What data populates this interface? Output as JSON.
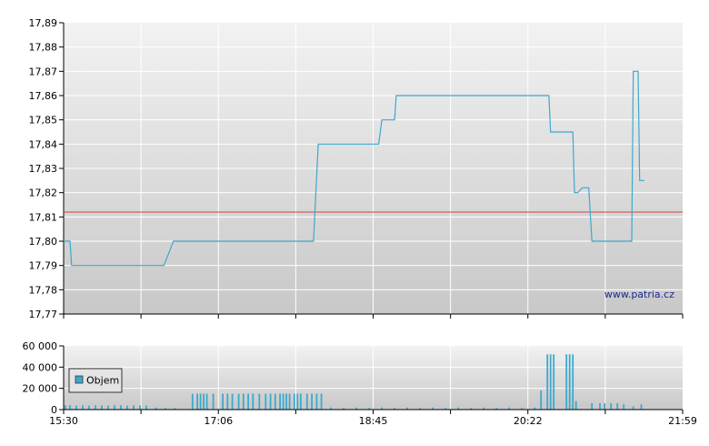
{
  "watermark": "www.patria.cz",
  "colors": {
    "price_line": "#3ea8cc",
    "reference_line": "#d04040",
    "volume_bar": "#3ea8cc",
    "grid": "#ffffff",
    "plot_bg_top": "#f2f2f2",
    "plot_bg_bottom": "#c8c8c8"
  },
  "chart_data": [
    {
      "type": "line",
      "title": "",
      "xlabel": "",
      "ylabel": "",
      "x_format": "time HH:MM",
      "xlim": [
        "15:30",
        "21:59"
      ],
      "ylim": [
        17.77,
        17.89
      ],
      "y_ticks": [
        "17,77",
        "17,78",
        "17,79",
        "17,80",
        "17,81",
        "17,82",
        "17,83",
        "17,84",
        "17,85",
        "17,86",
        "17,87",
        "17,88",
        "17,89"
      ],
      "y_tick_values": [
        17.77,
        17.78,
        17.79,
        17.8,
        17.81,
        17.82,
        17.83,
        17.84,
        17.85,
        17.86,
        17.87,
        17.88,
        17.89
      ],
      "grid": true,
      "reference_line": 17.812,
      "series": [
        {
          "step": true,
          "points": [
            [
              "15:30",
              17.8
            ],
            [
              "15:34",
              17.8
            ],
            [
              "15:35",
              17.79
            ],
            [
              "16:33",
              17.79
            ],
            [
              "16:39",
              17.8
            ],
            [
              "18:07",
              17.8
            ],
            [
              "18:10",
              17.84
            ],
            [
              "18:48",
              17.84
            ],
            [
              "18:50",
              17.85
            ],
            [
              "18:58",
              17.85
            ],
            [
              "18:59",
              17.86
            ],
            [
              "20:35",
              17.86
            ],
            [
              "20:36",
              17.845
            ],
            [
              "20:50",
              17.845
            ],
            [
              "20:51",
              17.82
            ],
            [
              "20:53",
              17.82
            ],
            [
              "20:56",
              17.822
            ],
            [
              "21:00",
              17.822
            ],
            [
              "21:02",
              17.8
            ],
            [
              "21:27",
              17.8
            ],
            [
              "21:28",
              17.87
            ],
            [
              "21:31",
              17.87
            ],
            [
              "21:32",
              17.825
            ],
            [
              "21:35",
              17.825
            ]
          ]
        }
      ]
    },
    {
      "type": "bar",
      "title": "",
      "xlabel": "",
      "ylabel": "",
      "ylim": [
        0,
        60000
      ],
      "y_ticks": [
        "0",
        "20 000",
        "40 000",
        "60 000"
      ],
      "y_tick_values": [
        0,
        20000,
        40000,
        60000
      ],
      "x_ticks": [
        "15:30",
        "17:06",
        "18:45",
        "20:22",
        "21:59"
      ],
      "grid": true,
      "legend": {
        "position": "left",
        "entries": [
          "Objem"
        ]
      },
      "series": [
        {
          "name": "Objem",
          "bars": [
            [
              "15:31",
              4000
            ],
            [
              "15:34",
              4000
            ],
            [
              "15:38",
              3800
            ],
            [
              "15:42",
              4000
            ],
            [
              "15:46",
              3800
            ],
            [
              "15:50",
              4000
            ],
            [
              "15:54",
              4000
            ],
            [
              "15:58",
              3800
            ],
            [
              "16:02",
              4000
            ],
            [
              "16:06",
              4000
            ],
            [
              "16:10",
              3800
            ],
            [
              "16:14",
              4000
            ],
            [
              "16:18",
              4000
            ],
            [
              "16:22",
              3800
            ],
            [
              "16:28",
              2000
            ],
            [
              "16:34",
              1500
            ],
            [
              "16:40",
              1500
            ],
            [
              "16:51",
              15000
            ],
            [
              "16:54",
              15000
            ],
            [
              "16:56",
              15000
            ],
            [
              "16:58",
              15000
            ],
            [
              "17:00",
              15000
            ],
            [
              "17:04",
              15000
            ],
            [
              "17:10",
              15000
            ],
            [
              "17:13",
              15000
            ],
            [
              "17:16",
              15000
            ],
            [
              "17:20",
              15000
            ],
            [
              "17:23",
              15000
            ],
            [
              "17:26",
              15000
            ],
            [
              "17:29",
              15000
            ],
            [
              "17:33",
              15000
            ],
            [
              "17:37",
              15000
            ],
            [
              "17:40",
              15000
            ],
            [
              "17:43",
              15000
            ],
            [
              "17:46",
              15000
            ],
            [
              "17:48",
              15000
            ],
            [
              "17:50",
              15000
            ],
            [
              "17:52",
              15000
            ],
            [
              "17:55",
              15000
            ],
            [
              "17:57",
              15000
            ],
            [
              "17:59",
              15000
            ],
            [
              "18:03",
              15000
            ],
            [
              "18:06",
              15000
            ],
            [
              "18:09",
              15000
            ],
            [
              "18:12",
              15000
            ],
            [
              "18:18",
              2000
            ],
            [
              "18:26",
              1500
            ],
            [
              "18:34",
              2000
            ],
            [
              "18:42",
              1500
            ],
            [
              "18:50",
              2000
            ],
            [
              "18:58",
              1500
            ],
            [
              "19:06",
              2000
            ],
            [
              "19:14",
              1500
            ],
            [
              "19:22",
              2000
            ],
            [
              "19:30",
              1500
            ],
            [
              "19:38",
              2000
            ],
            [
              "19:46",
              1500
            ],
            [
              "19:54",
              2000
            ],
            [
              "20:02",
              1500
            ],
            [
              "20:10",
              2000
            ],
            [
              "20:18",
              1500
            ],
            [
              "20:26",
              2000
            ],
            [
              "20:30",
              18000
            ],
            [
              "20:34",
              52000
            ],
            [
              "20:36",
              52000
            ],
            [
              "20:38",
              52000
            ],
            [
              "20:46",
              52000
            ],
            [
              "20:48",
              52000
            ],
            [
              "20:50",
              52000
            ],
            [
              "20:52",
              8000
            ],
            [
              "21:02",
              6000
            ],
            [
              "21:07",
              6000
            ],
            [
              "21:10",
              6000
            ],
            [
              "21:14",
              6000
            ],
            [
              "21:18",
              6000
            ],
            [
              "21:22",
              5000
            ],
            [
              "21:28",
              3000
            ],
            [
              "21:33",
              5000
            ]
          ]
        }
      ]
    }
  ]
}
